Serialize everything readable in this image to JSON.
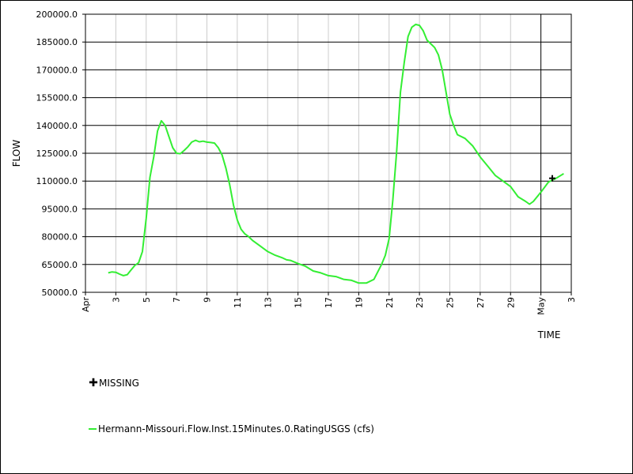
{
  "colors": {
    "series": "#33ee33",
    "grid_x": "#cccccc",
    "grid_y": "#000000",
    "axis": "#000000",
    "missing": "#000000"
  },
  "chart_data": {
    "type": "line",
    "xlabel": "TIME",
    "ylabel": "FLOW",
    "ylim": [
      50000,
      200000
    ],
    "xlim": [
      "2019-04-01",
      "2019-05-03"
    ],
    "grid": true,
    "legend_placement": "bottom-left",
    "y_ticks": [
      "50000.0",
      "65000.0",
      "80000.0",
      "95000.0",
      "110000.0",
      "125000.0",
      "140000.0",
      "155000.0",
      "170000.0",
      "185000.0",
      "200000.0"
    ],
    "x_ticks": [
      {
        "date": "2019-04-01",
        "label": "Apr"
      },
      {
        "date": "2019-04-03",
        "label": "3"
      },
      {
        "date": "2019-04-05",
        "label": "5"
      },
      {
        "date": "2019-04-07",
        "label": "7"
      },
      {
        "date": "2019-04-09",
        "label": "9"
      },
      {
        "date": "2019-04-11",
        "label": "11"
      },
      {
        "date": "2019-04-13",
        "label": "13"
      },
      {
        "date": "2019-04-15",
        "label": "15"
      },
      {
        "date": "2019-04-17",
        "label": "17"
      },
      {
        "date": "2019-04-19",
        "label": "19"
      },
      {
        "date": "2019-04-21",
        "label": "21"
      },
      {
        "date": "2019-04-23",
        "label": "23"
      },
      {
        "date": "2019-04-25",
        "label": "25"
      },
      {
        "date": "2019-04-27",
        "label": "27"
      },
      {
        "date": "2019-04-29",
        "label": "29"
      },
      {
        "date": "2019-05-01",
        "label": "May"
      },
      {
        "date": "2019-05-03",
        "label": "3"
      }
    ],
    "series": [
      {
        "name": "Hermann-Missouri.Flow.Inst.15Minutes.0.RatingUSGS (cfs)",
        "points": [
          [
            "2019-04-02 12:00",
            60500
          ],
          [
            "2019-04-02 18:00",
            61000
          ],
          [
            "2019-04-03 00:00",
            60800
          ],
          [
            "2019-04-03 06:00",
            59800
          ],
          [
            "2019-04-03 12:00",
            59000
          ],
          [
            "2019-04-03 18:00",
            59500
          ],
          [
            "2019-04-04 00:00",
            62000
          ],
          [
            "2019-04-04 06:00",
            64500
          ],
          [
            "2019-04-04 12:00",
            66000
          ],
          [
            "2019-04-04 18:00",
            72000
          ],
          [
            "2019-04-05 00:00",
            90000
          ],
          [
            "2019-04-05 06:00",
            112000
          ],
          [
            "2019-04-05 12:00",
            123000
          ],
          [
            "2019-04-05 18:00",
            137000
          ],
          [
            "2019-04-06 00:00",
            142500
          ],
          [
            "2019-04-06 06:00",
            140000
          ],
          [
            "2019-04-06 12:00",
            134000
          ],
          [
            "2019-04-06 18:00",
            128000
          ],
          [
            "2019-04-07 00:00",
            125000
          ],
          [
            "2019-04-07 06:00",
            124800
          ],
          [
            "2019-04-07 12:00",
            126500
          ],
          [
            "2019-04-07 18:00",
            128500
          ],
          [
            "2019-04-08 00:00",
            131000
          ],
          [
            "2019-04-08 06:00",
            132000
          ],
          [
            "2019-04-08 12:00",
            131200
          ],
          [
            "2019-04-08 18:00",
            131500
          ],
          [
            "2019-04-09 00:00",
            131000
          ],
          [
            "2019-04-09 06:00",
            130800
          ],
          [
            "2019-04-09 12:00",
            130500
          ],
          [
            "2019-04-09 18:00",
            128000
          ],
          [
            "2019-04-10 00:00",
            124000
          ],
          [
            "2019-04-10 06:00",
            117000
          ],
          [
            "2019-04-10 12:00",
            108000
          ],
          [
            "2019-04-10 18:00",
            97000
          ],
          [
            "2019-04-11 00:00",
            89000
          ],
          [
            "2019-04-11 06:00",
            84000
          ],
          [
            "2019-04-11 12:00",
            81500
          ],
          [
            "2019-04-11 18:00",
            80000
          ],
          [
            "2019-04-12 00:00",
            78000
          ],
          [
            "2019-04-12 12:00",
            75000
          ],
          [
            "2019-04-13 00:00",
            72000
          ],
          [
            "2019-04-13 12:00",
            70000
          ],
          [
            "2019-04-14 00:00",
            68500
          ],
          [
            "2019-04-14 06:00",
            67500
          ],
          [
            "2019-04-14 12:00",
            67200
          ],
          [
            "2019-04-15 00:00",
            65500
          ],
          [
            "2019-04-15 12:00",
            64000
          ],
          [
            "2019-04-16 00:00",
            61500
          ],
          [
            "2019-04-16 12:00",
            60500
          ],
          [
            "2019-04-17 00:00",
            59000
          ],
          [
            "2019-04-17 12:00",
            58500
          ],
          [
            "2019-04-18 00:00",
            57000
          ],
          [
            "2019-04-18 12:00",
            56500
          ],
          [
            "2019-04-19 00:00",
            55000
          ],
          [
            "2019-04-19 12:00",
            55000
          ],
          [
            "2019-04-20 00:00",
            57000
          ],
          [
            "2019-04-20 12:00",
            65000
          ],
          [
            "2019-04-20 18:00",
            70000
          ],
          [
            "2019-04-21 00:00",
            79000
          ],
          [
            "2019-04-21 06:00",
            100000
          ],
          [
            "2019-04-21 12:00",
            126000
          ],
          [
            "2019-04-21 18:00",
            158000
          ],
          [
            "2019-04-22 00:00",
            174000
          ],
          [
            "2019-04-22 06:00",
            188000
          ],
          [
            "2019-04-22 12:00",
            193000
          ],
          [
            "2019-04-22 18:00",
            194500
          ],
          [
            "2019-04-23 00:00",
            194000
          ],
          [
            "2019-04-23 06:00",
            191000
          ],
          [
            "2019-04-23 12:00",
            186000
          ],
          [
            "2019-04-23 18:00",
            184000
          ],
          [
            "2019-04-24 00:00",
            182000
          ],
          [
            "2019-04-24 06:00",
            178000
          ],
          [
            "2019-04-24 12:00",
            170000
          ],
          [
            "2019-04-24 18:00",
            158000
          ],
          [
            "2019-04-25 00:00",
            146000
          ],
          [
            "2019-04-25 06:00",
            140000
          ],
          [
            "2019-04-25 12:00",
            135000
          ],
          [
            "2019-04-26 00:00",
            133000
          ],
          [
            "2019-04-26 12:00",
            129000
          ],
          [
            "2019-04-27 00:00",
            123000
          ],
          [
            "2019-04-27 12:00",
            118000
          ],
          [
            "2019-04-28 00:00",
            113000
          ],
          [
            "2019-04-28 12:00",
            110000
          ],
          [
            "2019-04-29 00:00",
            107000
          ],
          [
            "2019-04-29 12:00",
            101500
          ],
          [
            "2019-04-30 00:00",
            99000
          ],
          [
            "2019-04-30 06:00",
            97500
          ],
          [
            "2019-04-30 12:00",
            99000
          ],
          [
            "2019-05-01 00:00",
            104000
          ],
          [
            "2019-05-01 12:00",
            109500
          ],
          [
            "2019-05-02 00:00",
            111500
          ],
          [
            "2019-05-02 12:00",
            114000
          ]
        ]
      }
    ],
    "missing_points": [
      [
        "2019-05-01 18:00",
        111500
      ]
    ],
    "legend": {
      "missing_label": "MISSING",
      "series_label": "Hermann-Missouri.Flow.Inst.15Minutes.0.RatingUSGS (cfs)"
    }
  }
}
